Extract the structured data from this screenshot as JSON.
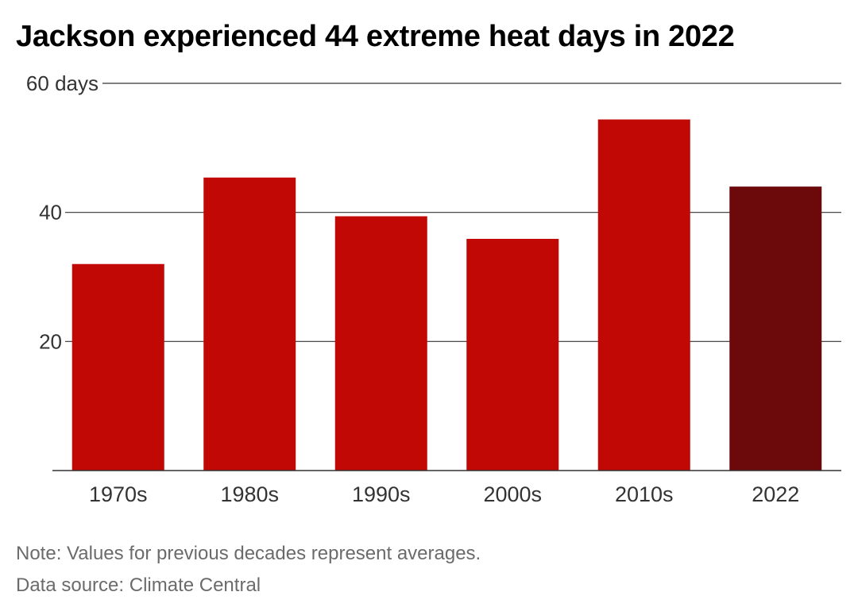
{
  "title": "Jackson experienced 44 extreme heat days in 2022",
  "note": "Note: Values for previous decades represent averages.",
  "source": "Data source: Climate Central",
  "colors": {
    "bar": "#c20805",
    "highlight": "#6b090b",
    "grid": "#333333",
    "tick_label": "#333333",
    "note_text": "#6b6b6b"
  },
  "chart_data": {
    "type": "bar",
    "categories": [
      "1970s",
      "1980s",
      "1990s",
      "2000s",
      "2010s",
      "2022"
    ],
    "values": [
      32,
      45.4,
      39.4,
      35.9,
      54.4,
      44
    ],
    "highlight_category": "2022",
    "ylim": [
      0,
      60
    ],
    "yticks": [
      20,
      40,
      60
    ],
    "ytick_labels": [
      "20",
      "40",
      "60 days"
    ],
    "grid": true,
    "xlabel": "",
    "ylabel": ""
  }
}
